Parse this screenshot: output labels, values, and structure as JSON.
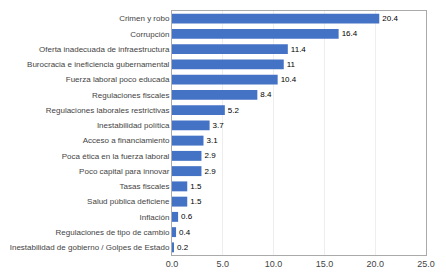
{
  "chart_data": {
    "type": "bar",
    "orientation": "horizontal",
    "categories": [
      "Inestabilidad de gobierno / Golpes de Estado",
      "Regulaciones de tipo de cambio",
      "Inflación",
      "Salud pública deficiene",
      "Tasas fiscales",
      "Poco capital para innovar",
      "Poca ética en la fuerza laboral",
      "Acceso a financiamiento",
      "Inestabilidad política",
      "Regulaciones laborales restrictivas",
      "Regulaciones fiscales",
      "Fuerza laboral poco educada",
      "Burocracia e ineficiencia gubernamental",
      "Oferta inadecuada de infraestructura",
      "Corrupción",
      "Crimen y robo"
    ],
    "values": [
      0.2,
      0.4,
      0.6,
      1.5,
      1.5,
      2.9,
      2.9,
      3.1,
      3.7,
      5.2,
      8.4,
      10.4,
      11.0,
      11.4,
      16.4,
      20.4
    ],
    "color": "#4472C4",
    "xlim": [
      0,
      25
    ],
    "xticks": [
      {
        "value": 0,
        "label": "0.0"
      },
      {
        "value": 5,
        "label": "5.0"
      },
      {
        "value": 10,
        "label": "10.0"
      },
      {
        "value": 15,
        "label": "15.0"
      },
      {
        "value": 20,
        "label": "20.0"
      },
      {
        "value": 25,
        "label": "25.0"
      }
    ],
    "grid": true,
    "data_labels": true
  }
}
